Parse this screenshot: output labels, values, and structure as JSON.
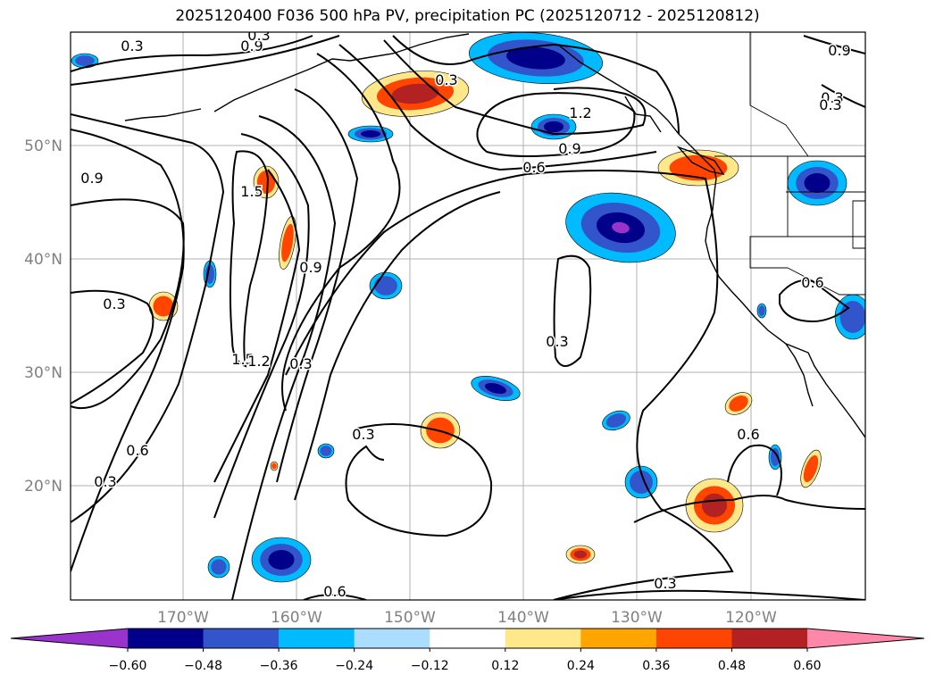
{
  "title": "2025120400 F036 500 hPa PV, precipitation PC (2025120712 - 2025120812)",
  "map": {
    "lon_ticks": [
      "170°W",
      "160°W",
      "150°W",
      "140°W",
      "130°W",
      "120°W"
    ],
    "lat_ticks": [
      "50°N",
      "40°N",
      "30°N",
      "20°N"
    ],
    "grid": true,
    "contour_labels": [
      "0.3",
      "0.9",
      "0.3",
      "0.9",
      "0.3",
      "1.2",
      "0.9",
      "0.6",
      "0.6",
      "0.3",
      "0.9",
      "1.5",
      "0.3",
      "0.9",
      "1.5",
      "1.2",
      "0.3",
      "0.3",
      "0.6",
      "0.6",
      "0.3",
      "0.3",
      "0.6",
      "0.3",
      "0.3"
    ],
    "contour_levels": [
      0.3,
      0.6,
      0.9,
      1.2,
      1.5
    ]
  },
  "colorbar": {
    "tick_labels": [
      "−0.60",
      "−0.48",
      "−0.36",
      "−0.24",
      "−0.12",
      "0.12",
      "0.24",
      "0.36",
      "0.48",
      "0.60"
    ],
    "colors": [
      "#9933cc",
      "#00008b",
      "#3355cc",
      "#00bbff",
      "#aaddff",
      "#ffffff",
      "#ffe88a",
      "#ffa500",
      "#ff4500",
      "#b22222",
      "#ff88aa"
    ],
    "extend": "both"
  },
  "colors": {
    "neg_dark": "#00008b",
    "neg_mid": "#3355cc",
    "neg_light": "#00bbff",
    "pos_light": "#ffe88a",
    "pos_mid": "#ffa500",
    "pos_strong": "#ff4500",
    "pos_dark": "#b22222",
    "neg_extreme": "#9933cc"
  }
}
